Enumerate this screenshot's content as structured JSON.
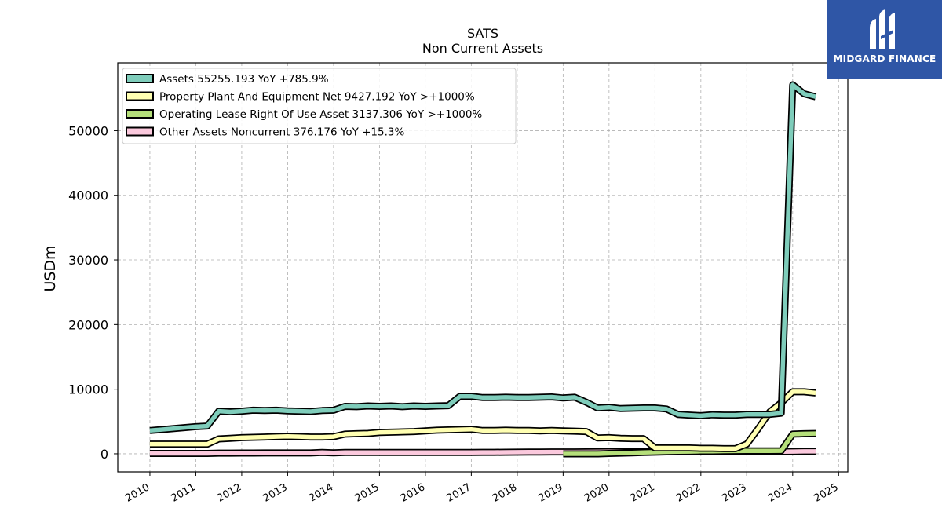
{
  "brand": {
    "name": "MIDGARD FINANCE",
    "bg_color": "#2f56a6"
  },
  "chart_data": {
    "type": "line",
    "title": "SATS",
    "subtitle": "Non Current  Assets",
    "ylabel": "USDm",
    "xlabel": "",
    "xlim": [
      2009.3,
      2025.2
    ],
    "ylim": [
      -2800,
      60500
    ],
    "x_ticks": [
      2010,
      2011,
      2012,
      2013,
      2014,
      2015,
      2016,
      2017,
      2018,
      2019,
      2020,
      2021,
      2022,
      2023,
      2024,
      2025
    ],
    "x_tick_labels": [
      "2010",
      "2011",
      "2012",
      "2013",
      "2014",
      "2015",
      "2016",
      "2017",
      "2018",
      "2019",
      "2020",
      "2021",
      "2022",
      "2023",
      "2024",
      "2025"
    ],
    "y_ticks": [
      0,
      10000,
      20000,
      30000,
      40000,
      50000
    ],
    "y_tick_labels": [
      "0",
      "10000",
      "20000",
      "30000",
      "40000",
      "50000"
    ],
    "grid": true,
    "legend_position": "top-left",
    "series": [
      {
        "name": "Assets  55255.193 YoY +785.9%",
        "color": "#7fcdbb",
        "x": [
          2010.0,
          2010.25,
          2010.5,
          2010.75,
          2011.0,
          2011.25,
          2011.5,
          2011.75,
          2012.0,
          2012.25,
          2012.5,
          2012.75,
          2013.0,
          2013.25,
          2013.5,
          2013.75,
          2014.0,
          2014.25,
          2014.5,
          2014.75,
          2015.0,
          2015.25,
          2015.5,
          2015.75,
          2016.0,
          2016.25,
          2016.5,
          2016.75,
          2017.0,
          2017.25,
          2017.5,
          2017.75,
          2018.0,
          2018.25,
          2018.5,
          2018.75,
          2019.0,
          2019.25,
          2019.5,
          2019.75,
          2020.0,
          2020.25,
          2020.5,
          2020.75,
          2021.0,
          2021.25,
          2021.5,
          2021.75,
          2022.0,
          2022.25,
          2022.5,
          2022.75,
          2023.0,
          2023.25,
          2023.5,
          2023.75,
          2024.0,
          2024.25,
          2024.5
        ],
        "y": [
          3600,
          3750,
          3900,
          4050,
          4200,
          4300,
          6600,
          6500,
          6600,
          6750,
          6700,
          6750,
          6650,
          6600,
          6550,
          6700,
          6750,
          7350,
          7300,
          7400,
          7350,
          7400,
          7300,
          7400,
          7350,
          7400,
          7450,
          8900,
          8900,
          8700,
          8700,
          8750,
          8700,
          8700,
          8750,
          8800,
          8650,
          8750,
          8000,
          7100,
          7200,
          7000,
          7050,
          7100,
          7100,
          6950,
          6100,
          6000,
          5900,
          6050,
          6000,
          6000,
          6100,
          6100,
          6100,
          6300,
          57100,
          55700,
          55255
        ]
      },
      {
        "name": "Property Plant And Equipment Net  9427.192 YoY >+1000%",
        "color": "#ffffb2",
        "x": [
          2010.0,
          2010.25,
          2010.5,
          2010.75,
          2011.0,
          2011.25,
          2011.5,
          2011.75,
          2012.0,
          2012.25,
          2012.5,
          2012.75,
          2013.0,
          2013.25,
          2013.5,
          2013.75,
          2014.0,
          2014.25,
          2014.5,
          2014.75,
          2015.0,
          2015.25,
          2015.5,
          2015.75,
          2016.0,
          2016.25,
          2016.5,
          2016.75,
          2017.0,
          2017.25,
          2017.5,
          2017.75,
          2018.0,
          2018.25,
          2018.5,
          2018.75,
          2019.0,
          2019.25,
          2019.5,
          2019.75,
          2020.0,
          2020.25,
          2020.5,
          2020.75,
          2021.0,
          2021.25,
          2021.5,
          2021.75,
          2022.0,
          2022.25,
          2022.5,
          2022.75,
          2023.0,
          2023.25,
          2023.5,
          2023.75,
          2024.0,
          2024.25,
          2024.5
        ],
        "y": [
          1500,
          1500,
          1500,
          1500,
          1500,
          1500,
          2300,
          2400,
          2500,
          2550,
          2600,
          2650,
          2700,
          2650,
          2600,
          2600,
          2650,
          3050,
          3100,
          3150,
          3300,
          3350,
          3400,
          3450,
          3550,
          3650,
          3700,
          3750,
          3800,
          3600,
          3600,
          3650,
          3600,
          3600,
          3550,
          3600,
          3550,
          3500,
          3450,
          2450,
          2500,
          2400,
          2350,
          2350,
          900,
          900,
          900,
          900,
          850,
          850,
          800,
          800,
          1500,
          3900,
          6500,
          7900,
          9600,
          9600,
          9427
        ]
      },
      {
        "name": "Operating Lease Right Of Use Asset  3137.306 YoY >+1000%",
        "color": "#b5df7a",
        "x": [
          2019.0,
          2019.25,
          2019.5,
          2019.75,
          2020.0,
          2020.25,
          2020.5,
          2020.75,
          2021.0,
          2021.25,
          2021.5,
          2021.75,
          2022.0,
          2022.25,
          2022.5,
          2022.75,
          2023.0,
          2023.25,
          2023.5,
          2023.75,
          2024.0,
          2024.25,
          2024.5
        ],
        "y": [
          0,
          0,
          0,
          0,
          50,
          100,
          150,
          200,
          250,
          300,
          330,
          350,
          380,
          400,
          420,
          430,
          440,
          450,
          460,
          470,
          3050,
          3100,
          3137
        ]
      },
      {
        "name": "Other Assets Noncurrent  376.176 YoY +15.3%",
        "color": "#fbc9dd",
        "x": [
          2010.0,
          2010.25,
          2010.5,
          2010.75,
          2011.0,
          2011.25,
          2011.5,
          2011.75,
          2012.0,
          2012.25,
          2012.5,
          2012.75,
          2013.0,
          2013.25,
          2013.5,
          2013.75,
          2014.0,
          2014.25,
          2014.5,
          2014.75,
          2015.0,
          2015.25,
          2015.5,
          2015.75,
          2016.0,
          2016.25,
          2016.5,
          2016.75,
          2017.0,
          2017.25,
          2017.5,
          2017.75,
          2018.0,
          2018.25,
          2018.5,
          2018.75,
          2019.0,
          2019.25,
          2019.5,
          2019.75,
          2020.0,
          2020.25,
          2020.5,
          2020.75,
          2021.0,
          2021.25,
          2021.5,
          2021.75,
          2022.0,
          2022.25,
          2022.5,
          2022.75,
          2023.0,
          2023.25,
          2023.5,
          2023.75,
          2024.0,
          2024.25,
          2024.5
        ],
        "y": [
          50,
          50,
          50,
          50,
          50,
          50,
          100,
          100,
          120,
          120,
          130,
          130,
          130,
          130,
          130,
          200,
          150,
          200,
          200,
          200,
          200,
          200,
          200,
          200,
          200,
          200,
          200,
          200,
          200,
          220,
          220,
          240,
          250,
          260,
          270,
          280,
          280,
          290,
          300,
          310,
          320,
          330,
          340,
          350,
          360,
          360,
          360,
          370,
          360,
          360,
          360,
          350,
          350,
          340,
          330,
          320,
          350,
          370,
          376
        ]
      }
    ]
  }
}
